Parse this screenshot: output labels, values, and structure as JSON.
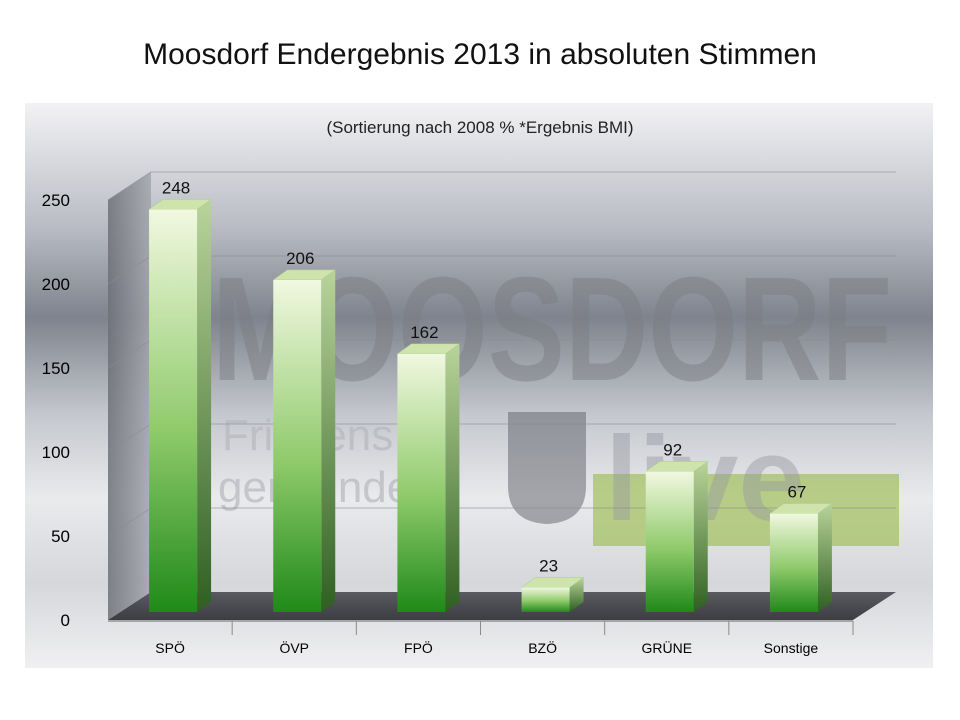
{
  "title": "Moosdorf  Endergebnis  2013 in absoluten Stimmen",
  "watermark": {
    "main": "MOOSDORF",
    "sub1": "Friedens",
    "sub2": "gemeinde",
    "live": "live"
  },
  "colors": {
    "bar_top": "#eef6dc",
    "bar_bottom": "#1f8a18",
    "watermark_green": "#9fbf55"
  },
  "chart_data": {
    "type": "bar",
    "title": "Moosdorf  Endergebnis  2013 in absoluten Stimmen",
    "subtitle": "(Sortierung nach 2008 % *Ergebnis BMI)",
    "categories": [
      "SPÖ",
      "ÖVP",
      "FPÖ",
      "BZÖ",
      "GRÜNE",
      "Sonstige"
    ],
    "values": [
      248,
      206,
      162,
      23,
      92,
      67
    ],
    "data_labels": [
      "248",
      "206",
      "162",
      "23",
      "92",
      "67"
    ],
    "y_ticks": [
      0,
      50,
      100,
      150,
      200,
      250
    ],
    "ylim": [
      0,
      250
    ],
    "xlabel": "",
    "ylabel": "",
    "grid": true,
    "style": "3d-bar"
  }
}
